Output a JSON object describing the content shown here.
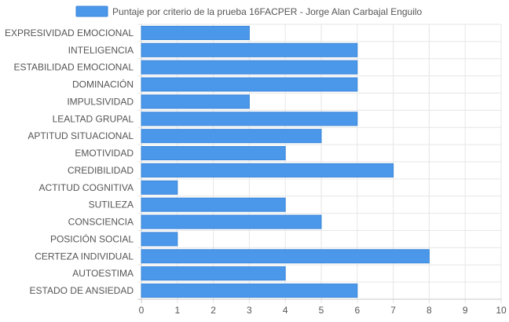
{
  "chart_data": {
    "type": "bar",
    "orientation": "horizontal",
    "legend": {
      "position": "top",
      "label": "Puntaje por criterio de la prueba 16FACPER - Jorge Alan Carbajal Enguilo"
    },
    "categories": [
      "EXPRESIVIDAD EMOCIONAL",
      "INTELIGENCIA",
      "ESTABILIDAD EMOCIONAL",
      "DOMINACIÓN",
      "IMPULSIVIDAD",
      "LEALTAD GRUPAL",
      "APTITUD SITUACIONAL",
      "EMOTIVIDAD",
      "CREDIBILIDAD",
      "ACTITUD COGNITIVA",
      "SUTILEZA",
      "CONSCIENCIA",
      "POSICIÓN SOCIAL",
      "CERTEZA INDIVIDUAL",
      "AUTOESTIMA",
      "ESTADO DE ANSIEDAD"
    ],
    "series": [
      {
        "name": "Puntaje por criterio de la prueba 16FACPER - Jorge Alan Carbajal Enguilo",
        "values": [
          3,
          6,
          6,
          6,
          3,
          6,
          5,
          4,
          7,
          1,
          4,
          5,
          1,
          8,
          4,
          6
        ]
      }
    ],
    "xlim": [
      0,
      10
    ],
    "xticks": [
      "0",
      "1",
      "2",
      "3",
      "4",
      "5",
      "6",
      "7",
      "8",
      "9",
      "10"
    ],
    "grid": true,
    "colors": {
      "bar_fill": "#4b98ea",
      "bar_stroke": "#3a86d8",
      "grid": "#e6e6e6",
      "axis": "#c8c8c8",
      "text": "#555555"
    }
  }
}
